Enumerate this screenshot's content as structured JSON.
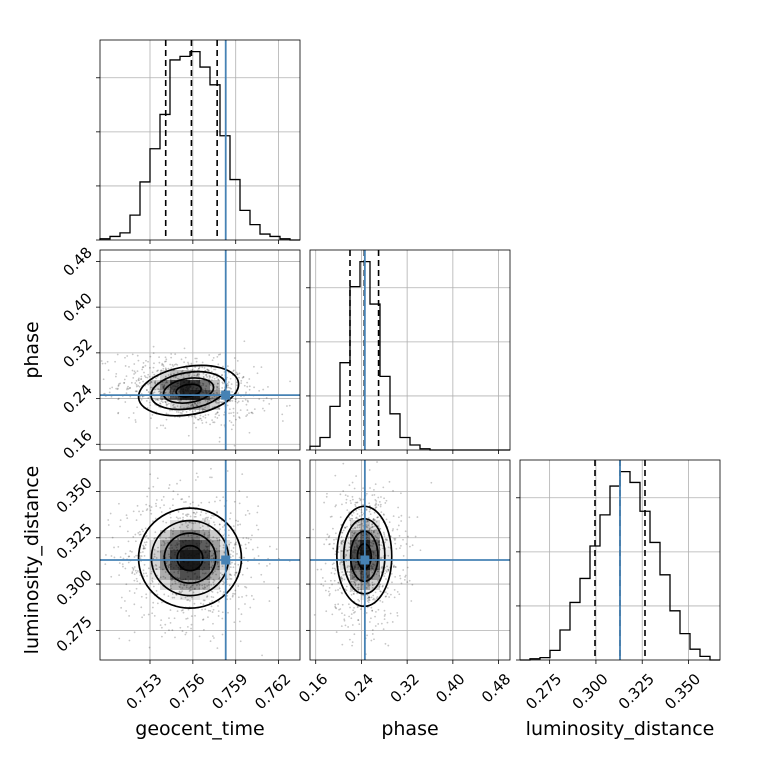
{
  "chart_data": {
    "type": "corner",
    "parameters": [
      {
        "name": "geocent_time",
        "label": "geocent_time",
        "range": [
          0.7495,
          0.7635
        ],
        "ticks": [
          "0.753",
          "0.756",
          "0.759",
          "0.762"
        ],
        "tick_values": [
          0.753,
          0.756,
          0.759,
          0.762
        ],
        "truth": 0.7583,
        "quantiles": [
          0.7541,
          0.7559,
          0.7577
        ]
      },
      {
        "name": "phase",
        "label": "phase",
        "range": [
          0.15,
          0.5
        ],
        "ticks": [
          "0.16",
          "0.24",
          "0.32",
          "0.40",
          "0.48"
        ],
        "tick_values": [
          0.16,
          0.24,
          0.32,
          0.4,
          0.48
        ],
        "truth": 0.246,
        "quantiles": [
          0.22,
          0.245,
          0.27
        ]
      },
      {
        "name": "luminosity_distance",
        "label": "luminosity_distance",
        "range": [
          0.259,
          0.367
        ],
        "ticks": [
          "0.275",
          "0.300",
          "0.325",
          "0.350"
        ],
        "tick_values": [
          0.275,
          0.3,
          0.325,
          0.35
        ],
        "truth": 0.313,
        "quantiles": [
          0.2995,
          0.313,
          0.3265
        ]
      }
    ],
    "histograms": [
      {
        "param": "geocent_time",
        "bin_edges": [
          0.7495,
          0.7502,
          0.7509,
          0.7516,
          0.7523,
          0.753,
          0.7537,
          0.7544,
          0.7551,
          0.7558,
          0.7565,
          0.7572,
          0.7579,
          0.7586,
          0.7593,
          0.76,
          0.7607,
          0.7614,
          0.7621,
          0.7628,
          0.7635
        ],
        "counts": [
          1,
          3,
          6,
          21,
          49,
          77,
          106,
          152,
          155,
          159,
          146,
          131,
          88,
          51,
          25,
          13,
          5,
          3,
          1,
          0
        ]
      },
      {
        "param": "phase",
        "bin_edges": [
          0.15,
          0.1675,
          0.185,
          0.2025,
          0.22,
          0.2375,
          0.255,
          0.2725,
          0.29,
          0.3075,
          0.325,
          0.3425,
          0.36,
          0.3775,
          0.395,
          0.4125,
          0.43,
          0.4475,
          0.465,
          0.4825,
          0.5
        ],
        "counts": [
          3,
          10,
          35,
          70,
          131,
          151,
          117,
          59,
          29,
          10,
          4,
          1,
          0,
          0,
          0,
          0,
          0,
          0,
          0,
          0
        ]
      },
      {
        "param": "luminosity_distance",
        "bin_edges": [
          0.259,
          0.2644,
          0.2698,
          0.2752,
          0.2806,
          0.286,
          0.2914,
          0.2968,
          0.3022,
          0.3076,
          0.313,
          0.3184,
          0.3238,
          0.3292,
          0.3346,
          0.34,
          0.3454,
          0.3508,
          0.3562,
          0.3616,
          0.367
        ],
        "counts": [
          0,
          1,
          2,
          8,
          25,
          48,
          68,
          95,
          121,
          145,
          157,
          148,
          124,
          98,
          71,
          41,
          22,
          9,
          3,
          0
        ]
      }
    ],
    "pairs": [
      {
        "x": "geocent_time",
        "y": "phase",
        "center": [
          0.7557,
          0.254
        ],
        "sigma": [
          0.00175,
          0.022
        ],
        "correlation": -0.25
      },
      {
        "x": "geocent_time",
        "y": "luminosity_distance",
        "center": [
          0.7558,
          0.314
        ],
        "sigma": [
          0.0018,
          0.0135
        ],
        "correlation": 0.0
      },
      {
        "x": "phase",
        "y": "luminosity_distance",
        "center": [
          0.245,
          0.315
        ],
        "sigma": [
          0.024,
          0.0135
        ],
        "correlation": 0.0
      }
    ],
    "truth_color": "#4682b4",
    "grid": true
  }
}
